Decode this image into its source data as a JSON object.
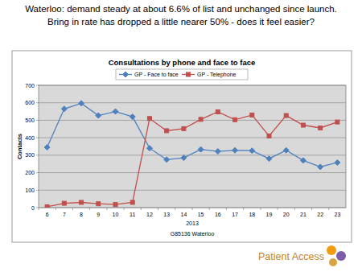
{
  "slide": {
    "heading": [
      "Waterloo:  demand steady at about 6.6% of list and unchanged since launch.",
      "Bring in rate has dropped a little nearer 50% - does it feel easier?"
    ],
    "logo": "Patient Access"
  },
  "chart_data": {
    "type": "line",
    "title": "Consultations by phone and face to face",
    "xlabel": "2013",
    "annotations": [
      "G85136 Waterloo"
    ],
    "ylabel": "Contacts",
    "categories": [
      "6",
      "7",
      "8",
      "9",
      "10",
      "11",
      "12",
      "13",
      "14",
      "15",
      "16",
      "17",
      "18",
      "19",
      "20",
      "21",
      "22",
      "23"
    ],
    "series": [
      {
        "name": "GP - Face to face",
        "color": "#4f81bd",
        "marker": "diamond",
        "values": [
          345,
          565,
          597,
          527,
          550,
          520,
          340,
          275,
          285,
          333,
          322,
          328,
          326,
          280,
          328,
          270,
          233,
          258
        ]
      },
      {
        "name": "GP - Telephone",
        "color": "#c0504d",
        "marker": "square",
        "values": [
          5,
          25,
          30,
          22,
          18,
          30,
          510,
          440,
          452,
          505,
          548,
          503,
          530,
          410,
          527,
          472,
          456,
          490
        ]
      }
    ],
    "ylim": [
      0,
      700
    ],
    "yticks": [
      0,
      100,
      200,
      300,
      400,
      500,
      600,
      700
    ],
    "grid": true,
    "legend": "top"
  }
}
